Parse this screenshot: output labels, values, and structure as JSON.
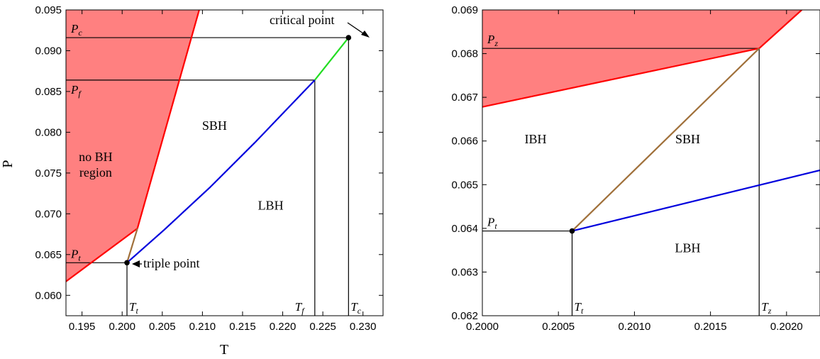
{
  "chart_data": [
    {
      "type": "line",
      "xlabel": "T",
      "ylabel": "P",
      "xlim": [
        0.193,
        0.2325
      ],
      "ylim": [
        0.0575,
        0.095
      ],
      "xticks": [
        "0.195",
        "0.200",
        "0.205",
        "0.210",
        "0.215",
        "0.220",
        "0.225",
        "0.230"
      ],
      "yticks": [
        "0.060",
        "0.065",
        "0.070",
        "0.075",
        "0.080",
        "0.085",
        "0.090",
        "0.095"
      ],
      "grid": false,
      "colors": {
        "fill": "#ff8080",
        "red": "#ff0000",
        "blue": "#0000dd",
        "brown": "#a0703a",
        "green": "#22dd22"
      },
      "region_labels": [
        {
          "text": "no BH\nregion",
          "x": 0.1967,
          "y": 0.0755
        },
        {
          "text": "SBH",
          "x": 0.2115,
          "y": 0.0803
        },
        {
          "text": "LBH",
          "x": 0.2185,
          "y": 0.0705
        }
      ],
      "series": [
        {
          "color": "#ff0000",
          "x": [
            0.193,
            0.2019
          ],
          "y": [
            0.0617,
            0.0682
          ]
        },
        {
          "color": "#ff0000",
          "x": [
            0.2019,
            0.2096
          ],
          "y": [
            0.0682,
            0.095
          ]
        },
        {
          "color": "#a0703a",
          "x": [
            0.2006,
            0.2019
          ],
          "y": [
            0.064,
            0.0682
          ]
        },
        {
          "color": "#0000dd",
          "x": [
            0.2006,
            0.2052,
            0.211,
            0.2165,
            0.224
          ],
          "y": [
            0.064,
            0.068,
            0.0733,
            0.0787,
            0.0864
          ]
        },
        {
          "color": "#22dd22",
          "x": [
            0.224,
            0.2282
          ],
          "y": [
            0.0864,
            0.0916
          ]
        }
      ],
      "fill_region": {
        "x": [
          0.193,
          0.2019,
          0.2096,
          0.193
        ],
        "y": [
          0.0617,
          0.0682,
          0.095,
          0.095
        ]
      },
      "guides": [
        {
          "kind": "h",
          "y": 0.0916,
          "x0": 0.193,
          "x1": 0.2282,
          "label": "P_c"
        },
        {
          "kind": "h",
          "y": 0.0864,
          "x0": 0.193,
          "x1": 0.224,
          "label": "P_f"
        },
        {
          "kind": "h",
          "y": 0.064,
          "x0": 0.193,
          "x1": 0.2006,
          "label": "P_t"
        },
        {
          "kind": "v",
          "x": 0.2006,
          "y0": 0.0575,
          "y1": 0.064,
          "label": "T_t"
        },
        {
          "kind": "v",
          "x": 0.224,
          "y0": 0.0575,
          "y1": 0.0864,
          "label": "T_f"
        },
        {
          "kind": "v",
          "x": 0.2282,
          "y0": 0.0575,
          "y1": 0.0916,
          "label": "T_c"
        }
      ],
      "points": [
        {
          "x": 0.2282,
          "y": 0.0916,
          "annotation": "critical point"
        },
        {
          "x": 0.2006,
          "y": 0.064,
          "annotation": "triple point"
        }
      ]
    },
    {
      "type": "line",
      "xlabel": "",
      "ylabel": "",
      "xlim": [
        0.2,
        0.20222
      ],
      "ylim": [
        0.062,
        0.069
      ],
      "xticks": [
        "0.2000",
        "0.2005",
        "0.2010",
        "0.2015",
        "0.2020"
      ],
      "yticks": [
        "0.062",
        "0.063",
        "0.064",
        "0.065",
        "0.066",
        "0.067",
        "0.068",
        "0.069"
      ],
      "grid": false,
      "region_labels": [
        {
          "text": "IBH",
          "x": 0.20035,
          "y": 0.06595
        },
        {
          "text": "SBH",
          "x": 0.20135,
          "y": 0.06595
        },
        {
          "text": "LBH",
          "x": 0.20135,
          "y": 0.06345
        }
      ],
      "series": [
        {
          "color": "#ff0000",
          "x": [
            0.2,
            0.20182
          ],
          "y": [
            0.06678,
            0.06812
          ]
        },
        {
          "color": "#ff0000",
          "x": [
            0.20182,
            0.2021
          ],
          "y": [
            0.06812,
            0.069
          ]
        },
        {
          "color": "#a0703a",
          "x": [
            0.20059,
            0.20182
          ],
          "y": [
            0.06394,
            0.06812
          ]
        },
        {
          "color": "#0000dd",
          "x": [
            0.20059,
            0.20222
          ],
          "y": [
            0.06394,
            0.06533
          ]
        }
      ],
      "fill_region": {
        "x": [
          0.2,
          0.20182,
          0.2021,
          0.2
        ],
        "y": [
          0.06678,
          0.06812,
          0.069,
          0.069
        ]
      },
      "guides": [
        {
          "kind": "h",
          "y": 0.06812,
          "x0": 0.2,
          "x1": 0.20182,
          "label": "P_z"
        },
        {
          "kind": "h",
          "y": 0.06394,
          "x0": 0.2,
          "x1": 0.20059,
          "label": "P_t"
        },
        {
          "kind": "v",
          "x": 0.20059,
          "y0": 0.062,
          "y1": 0.06394,
          "label": "T_t"
        },
        {
          "kind": "v",
          "x": 0.20182,
          "y0": 0.062,
          "y1": 0.06812,
          "label": "T_z"
        }
      ],
      "points": [
        {
          "x": 0.20059,
          "y": 0.06394,
          "annotation": ""
        }
      ]
    }
  ]
}
